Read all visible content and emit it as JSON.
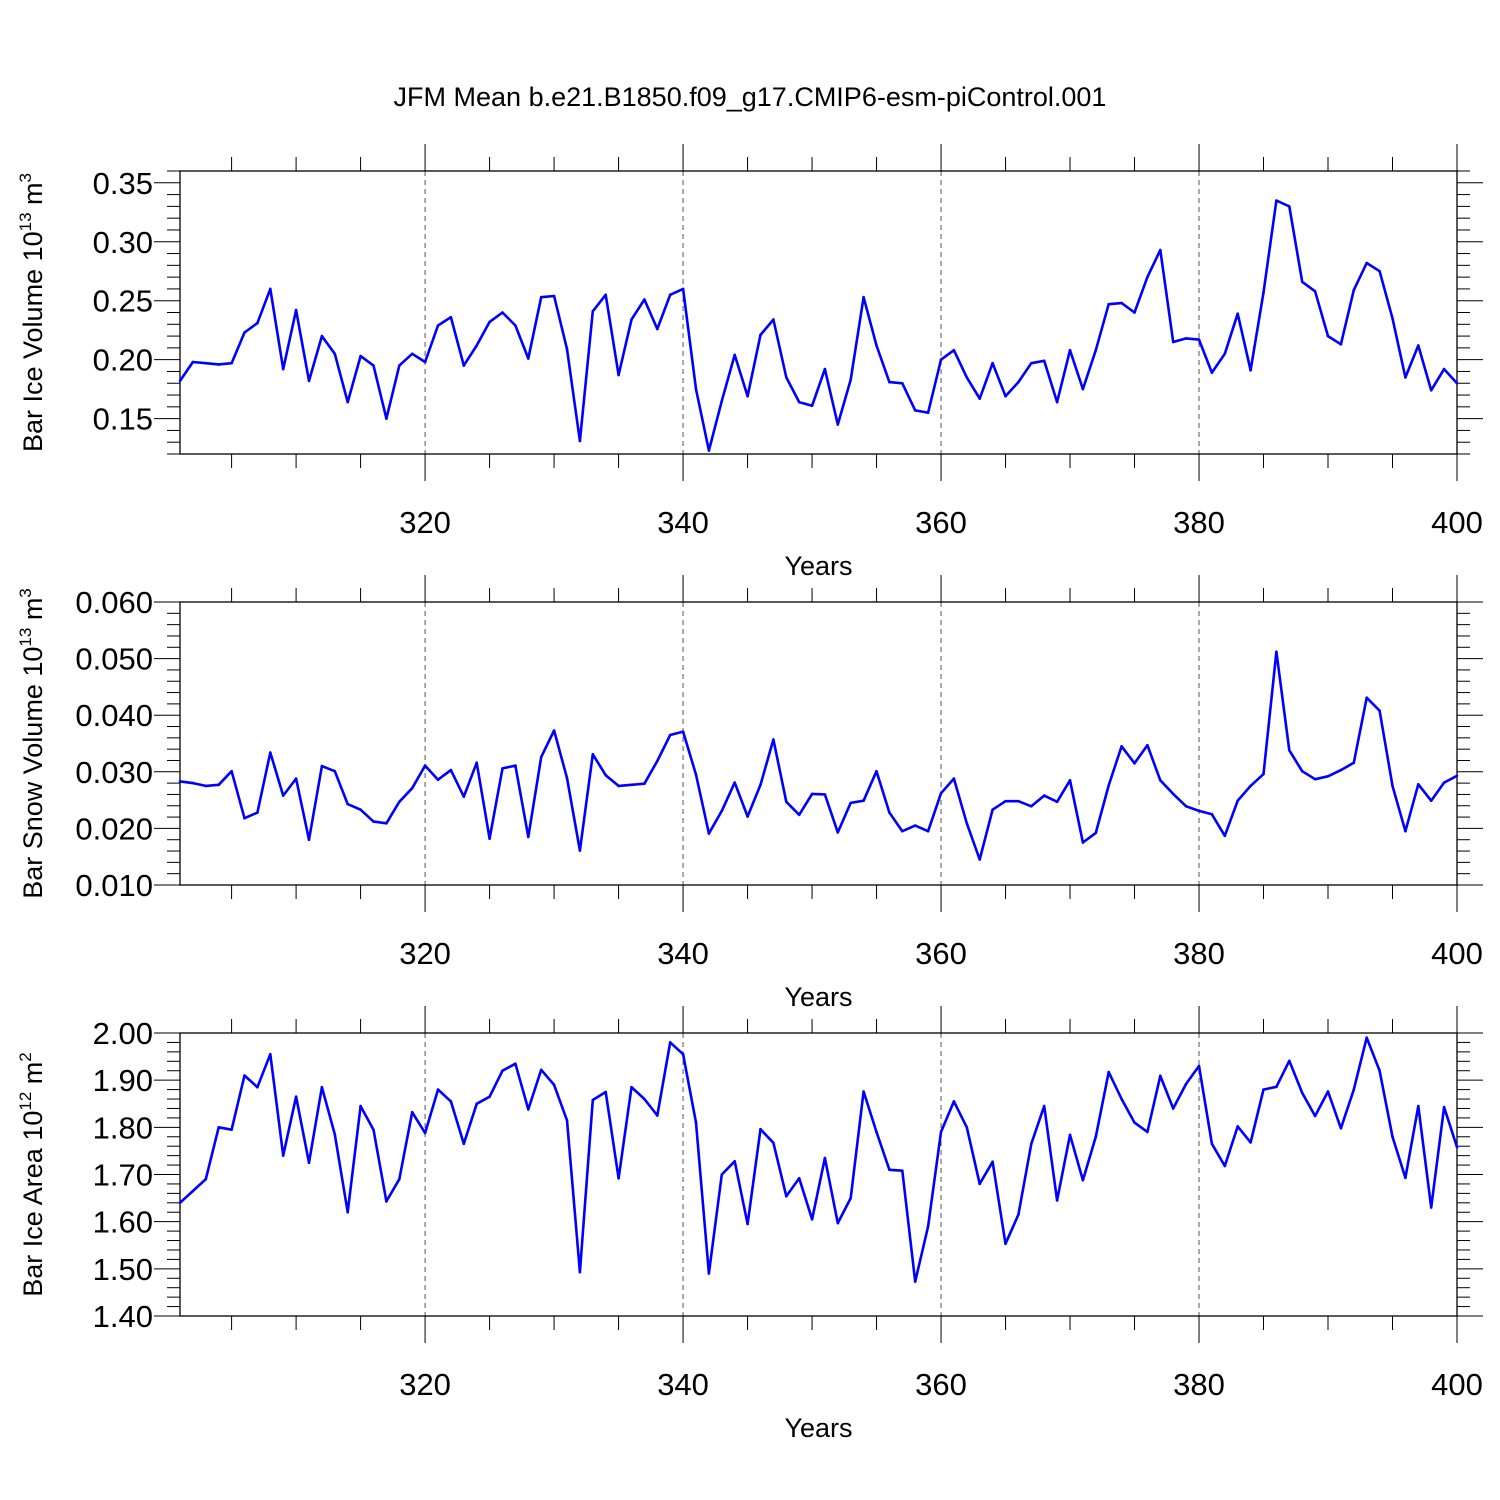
{
  "title": "JFM Mean b.e21.B1850.f09_g17.CMIP6-esm-piControl.001",
  "line_color": "#0000ff",
  "chart_data": [
    {
      "type": "line",
      "ylabel": "Bar Ice Volume",
      "yunit_base": "10",
      "yunit_exp": "13",
      "yunit_tail": " m",
      "yunit_tail_exp": "3",
      "xlabel": "Years",
      "xlim": [
        301,
        400
      ],
      "ylim": [
        0.12,
        0.36
      ],
      "xticks": [
        320,
        340,
        360,
        380,
        400
      ],
      "xtick_labels": [
        "320",
        "340",
        "360",
        "380",
        "400"
      ],
      "yticks": [
        0.15,
        0.2,
        0.25,
        0.3,
        0.35
      ],
      "ytick_labels": [
        "0.15",
        "0.20",
        "0.25",
        "0.30",
        "0.35"
      ],
      "x": [
        301,
        302,
        303,
        304,
        305,
        306,
        307,
        308,
        309,
        310,
        311,
        312,
        313,
        314,
        315,
        316,
        317,
        318,
        319,
        320,
        321,
        322,
        323,
        324,
        325,
        326,
        327,
        328,
        329,
        330,
        331,
        332,
        333,
        334,
        335,
        336,
        337,
        338,
        339,
        340,
        341,
        342,
        343,
        344,
        345,
        346,
        347,
        348,
        349,
        350,
        351,
        352,
        353,
        354,
        355,
        356,
        357,
        358,
        359,
        360,
        361,
        362,
        363,
        364,
        365,
        366,
        367,
        368,
        369,
        370,
        371,
        372,
        373,
        374,
        375,
        376,
        377,
        378,
        379,
        380,
        381,
        382,
        383,
        384,
        385,
        386,
        387,
        388,
        389,
        390,
        391,
        392,
        393,
        394,
        395,
        396,
        397,
        398,
        399,
        400
      ],
      "series": [
        {
          "values": [
            0.182,
            0.198,
            0.197,
            0.196,
            0.197,
            0.223,
            0.231,
            0.26,
            0.192,
            0.242,
            0.182,
            0.22,
            0.205,
            0.164,
            0.203,
            0.195,
            0.15,
            0.195,
            0.205,
            0.198,
            0.229,
            0.236,
            0.195,
            0.212,
            0.232,
            0.24,
            0.229,
            0.201,
            0.253,
            0.254,
            0.209,
            0.131,
            0.241,
            0.255,
            0.187,
            0.234,
            0.251,
            0.226,
            0.255,
            0.26,
            0.175,
            0.123,
            0.165,
            0.204,
            0.169,
            0.221,
            0.234,
            0.185,
            0.164,
            0.161,
            0.192,
            0.145,
            0.183,
            0.253,
            0.212,
            0.181,
            0.18,
            0.157,
            0.155,
            0.2,
            0.208,
            0.185,
            0.167,
            0.197,
            0.169,
            0.181,
            0.197,
            0.199,
            0.164,
            0.208,
            0.175,
            0.208,
            0.247,
            0.248,
            0.24,
            0.27,
            0.293,
            0.215,
            0.218,
            0.217,
            0.189,
            0.205,
            0.239,
            0.191,
            0.257,
            0.335,
            0.33,
            0.266,
            0.258,
            0.22,
            0.213,
            0.259,
            0.282,
            0.275,
            0.235,
            0.185,
            0.212,
            0.174,
            0.192,
            0.18
          ]
        }
      ]
    },
    {
      "type": "line",
      "ylabel": "Bar Snow Volume",
      "yunit_base": "10",
      "yunit_exp": "13",
      "yunit_tail": " m",
      "yunit_tail_exp": "3",
      "xlabel": "Years",
      "xlim": [
        301,
        400
      ],
      "ylim": [
        0.01,
        0.06
      ],
      "xticks": [
        320,
        340,
        360,
        380,
        400
      ],
      "xtick_labels": [
        "320",
        "340",
        "360",
        "380",
        "400"
      ],
      "yticks": [
        0.01,
        0.02,
        0.03,
        0.04,
        0.05,
        0.06
      ],
      "ytick_labels": [
        "0.010",
        "0.020",
        "0.030",
        "0.040",
        "0.050",
        "0.060"
      ],
      "x": [
        301,
        302,
        303,
        304,
        305,
        306,
        307,
        308,
        309,
        310,
        311,
        312,
        313,
        314,
        315,
        316,
        317,
        318,
        319,
        320,
        321,
        322,
        323,
        324,
        325,
        326,
        327,
        328,
        329,
        330,
        331,
        332,
        333,
        334,
        335,
        336,
        337,
        338,
        339,
        340,
        341,
        342,
        343,
        344,
        345,
        346,
        347,
        348,
        349,
        350,
        351,
        352,
        353,
        354,
        355,
        356,
        357,
        358,
        359,
        360,
        361,
        362,
        363,
        364,
        365,
        366,
        367,
        368,
        369,
        370,
        371,
        372,
        373,
        374,
        375,
        376,
        377,
        378,
        379,
        380,
        381,
        382,
        383,
        384,
        385,
        386,
        387,
        388,
        389,
        390,
        391,
        392,
        393,
        394,
        395,
        396,
        397,
        398,
        399,
        400
      ],
      "series": [
        {
          "values": [
            0.0283,
            0.028,
            0.0275,
            0.0277,
            0.0301,
            0.0218,
            0.0228,
            0.0334,
            0.0258,
            0.0288,
            0.018,
            0.031,
            0.0301,
            0.0243,
            0.0233,
            0.0212,
            0.0209,
            0.0247,
            0.0271,
            0.0311,
            0.0286,
            0.0303,
            0.0256,
            0.0316,
            0.0182,
            0.0306,
            0.0311,
            0.0185,
            0.0326,
            0.0373,
            0.0289,
            0.0161,
            0.0331,
            0.0294,
            0.0275,
            0.0277,
            0.0279,
            0.0319,
            0.0365,
            0.0371,
            0.0295,
            0.0191,
            0.0231,
            0.0281,
            0.0221,
            0.0277,
            0.0357,
            0.0247,
            0.0224,
            0.0261,
            0.026,
            0.0193,
            0.0245,
            0.0249,
            0.0301,
            0.0228,
            0.0195,
            0.0205,
            0.0195,
            0.0262,
            0.0288,
            0.0209,
            0.0145,
            0.0233,
            0.0248,
            0.0248,
            0.0239,
            0.0258,
            0.0247,
            0.0285,
            0.0175,
            0.0192,
            0.0276,
            0.0345,
            0.0315,
            0.0347,
            0.0285,
            0.0261,
            0.0239,
            0.0231,
            0.0225,
            0.0187,
            0.0249,
            0.0275,
            0.0296,
            0.0512,
            0.0338,
            0.0301,
            0.0287,
            0.0292,
            0.0303,
            0.0316,
            0.0431,
            0.0408,
            0.0275,
            0.0195,
            0.0278,
            0.0249,
            0.0281,
            0.0293
          ]
        }
      ]
    },
    {
      "type": "line",
      "ylabel": "Bar Ice Area",
      "yunit_base": "10",
      "yunit_exp": "12",
      "yunit_tail": " m",
      "yunit_tail_exp": "2",
      "xlabel": "Years",
      "xlim": [
        301,
        400
      ],
      "ylim": [
        1.4,
        2.0
      ],
      "xticks": [
        320,
        340,
        360,
        380,
        400
      ],
      "xtick_labels": [
        "320",
        "340",
        "360",
        "380",
        "400"
      ],
      "yticks": [
        1.4,
        1.5,
        1.6,
        1.7,
        1.8,
        1.9,
        2.0
      ],
      "ytick_labels": [
        "1.40",
        "1.50",
        "1.60",
        "1.70",
        "1.80",
        "1.90",
        "2.00"
      ],
      "x": [
        301,
        302,
        303,
        304,
        305,
        306,
        307,
        308,
        309,
        310,
        311,
        312,
        313,
        314,
        315,
        316,
        317,
        318,
        319,
        320,
        321,
        322,
        323,
        324,
        325,
        326,
        327,
        328,
        329,
        330,
        331,
        332,
        333,
        334,
        335,
        336,
        337,
        338,
        339,
        340,
        341,
        342,
        343,
        344,
        345,
        346,
        347,
        348,
        349,
        350,
        351,
        352,
        353,
        354,
        355,
        356,
        357,
        358,
        359,
        360,
        361,
        362,
        363,
        364,
        365,
        366,
        367,
        368,
        369,
        370,
        371,
        372,
        373,
        374,
        375,
        376,
        377,
        378,
        379,
        380,
        381,
        382,
        383,
        384,
        385,
        386,
        387,
        388,
        389,
        390,
        391,
        392,
        393,
        394,
        395,
        396,
        397,
        398,
        399,
        400
      ],
      "series": [
        {
          "values": [
            1.64,
            1.665,
            1.69,
            1.8,
            1.795,
            1.91,
            1.885,
            1.955,
            1.74,
            1.865,
            1.725,
            1.885,
            1.785,
            1.62,
            1.845,
            1.795,
            1.643,
            1.69,
            1.832,
            1.788,
            1.88,
            1.855,
            1.765,
            1.85,
            1.865,
            1.92,
            1.935,
            1.838,
            1.922,
            1.89,
            1.815,
            1.493,
            1.858,
            1.875,
            1.692,
            1.885,
            1.86,
            1.825,
            1.98,
            1.955,
            1.81,
            1.49,
            1.7,
            1.728,
            1.595,
            1.796,
            1.767,
            1.654,
            1.692,
            1.605,
            1.735,
            1.597,
            1.65,
            1.876,
            1.79,
            1.71,
            1.708,
            1.473,
            1.59,
            1.79,
            1.855,
            1.8,
            1.68,
            1.727,
            1.553,
            1.615,
            1.765,
            1.845,
            1.645,
            1.784,
            1.688,
            1.78,
            1.917,
            1.86,
            1.81,
            1.79,
            1.909,
            1.84,
            1.892,
            1.93,
            1.765,
            1.718,
            1.802,
            1.768,
            1.88,
            1.886,
            1.941,
            1.873,
            1.824,
            1.876,
            1.798,
            1.88,
            1.99,
            1.92,
            1.78,
            1.693,
            1.845,
            1.63,
            1.843,
            1.758
          ]
        }
      ]
    }
  ]
}
